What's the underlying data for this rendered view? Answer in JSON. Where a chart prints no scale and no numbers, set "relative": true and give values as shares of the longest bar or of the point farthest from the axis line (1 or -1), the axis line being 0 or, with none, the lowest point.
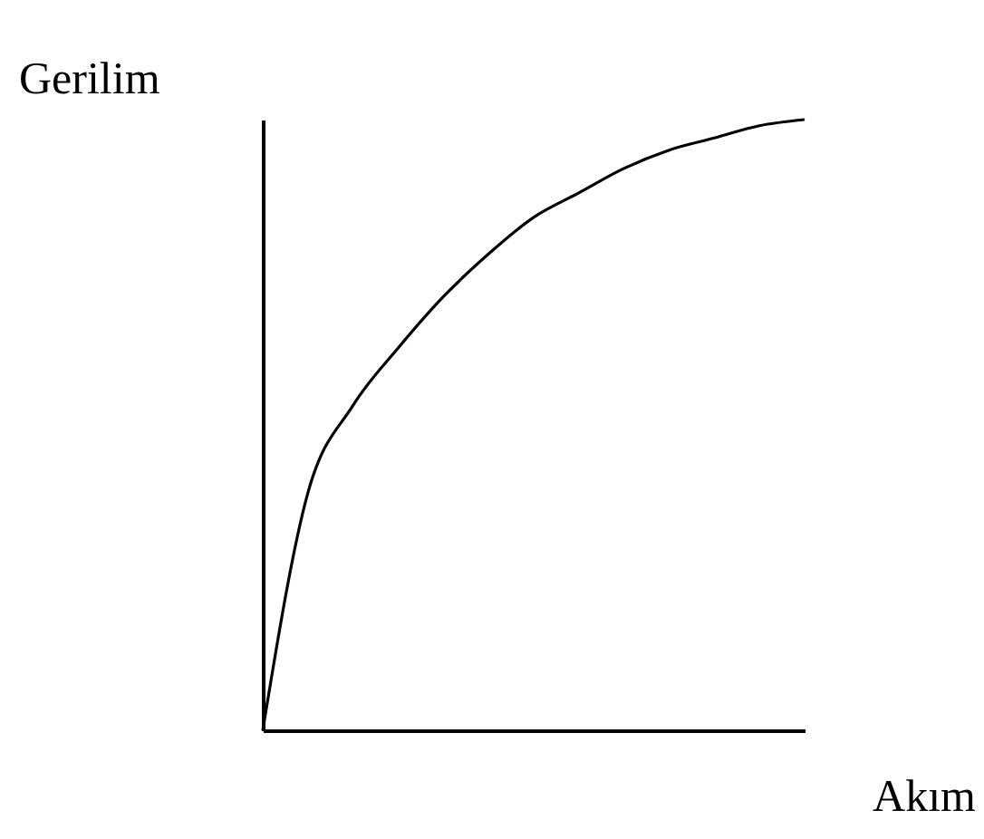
{
  "chart_data": {
    "type": "line",
    "relative": true,
    "xlabel": "Akım",
    "ylabel": "Gerilim",
    "categories": [
      null,
      null,
      null,
      null,
      null,
      null,
      null,
      null,
      null,
      null,
      null,
      null,
      null
    ],
    "series": [
      {
        "color": "#000000",
        "values": [
          0,
          0.389,
          0.532,
          0.626,
          0.71,
          0.78,
          0.84,
          0.88,
          0.92,
          0.95,
          0.97,
          0.99,
          1
        ]
      }
    ],
    "grid": false,
    "tick_labels": false,
    "marker": "none",
    "line_style": "solid"
  }
}
